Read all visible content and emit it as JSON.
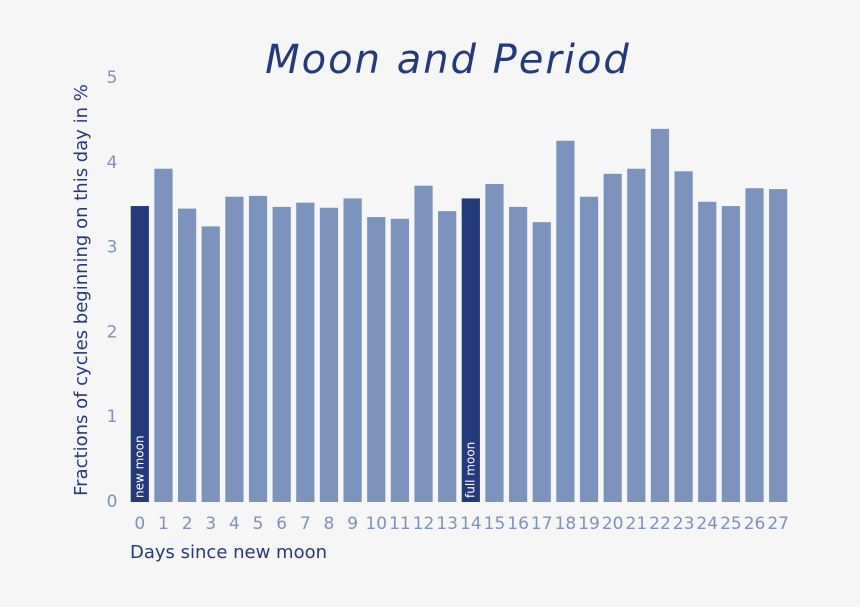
{
  "chart_data": {
    "type": "bar",
    "title": "Moon and Period",
    "y_label": "Fractions of cycles beginning on this day in %",
    "x_label": "Days since new moon",
    "categories": [
      "0",
      "1",
      "2",
      "3",
      "4",
      "5",
      "6",
      "7",
      "8",
      "9",
      "10",
      "11",
      "12",
      "13",
      "14",
      "15",
      "16",
      "17",
      "18",
      "19",
      "20",
      "21",
      "22",
      "23",
      "24",
      "25",
      "26",
      "27"
    ],
    "values": [
      3.49,
      3.93,
      3.46,
      3.25,
      3.6,
      3.61,
      3.48,
      3.53,
      3.47,
      3.58,
      3.36,
      3.34,
      3.73,
      3.43,
      3.58,
      3.75,
      3.48,
      3.3,
      4.26,
      3.6,
      3.87,
      3.93,
      4.4,
      3.9,
      3.54,
      3.49,
      3.7,
      3.69
    ],
    "color": "#7b93bd",
    "highlight_color": "#243a7a",
    "annotations": [
      {
        "index": 0,
        "text": "new moon"
      },
      {
        "index": 14,
        "text": "full moon"
      }
    ],
    "ylim": [
      0,
      5
    ],
    "yticks": [
      0,
      1,
      2,
      3,
      4,
      5
    ],
    "grid": false
  }
}
